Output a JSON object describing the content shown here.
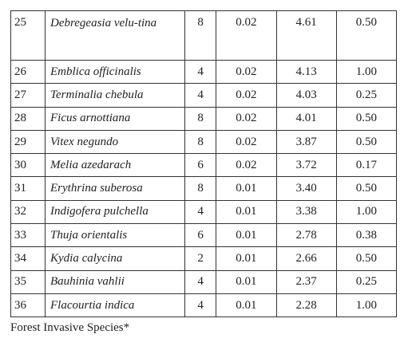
{
  "table": {
    "rows": [
      [
        "25",
        "Debregeasia velu-tina",
        "8",
        "0.02",
        "4.61",
        "0.50"
      ],
      [
        "26",
        "Emblica officinalis",
        "4",
        "0.02",
        "4.13",
        "1.00"
      ],
      [
        "27",
        "Terminalia chebula",
        "4",
        "0.02",
        "4.03",
        "0.25"
      ],
      [
        "28",
        "Ficus arnottiana",
        "8",
        "0.02",
        "4.01",
        "0.50"
      ],
      [
        "29",
        "Vitex negundo",
        "8",
        "0.02",
        "3.87",
        "0.50"
      ],
      [
        "30",
        "Melia azedarach",
        "6",
        "0.02",
        "3.72",
        "0.17"
      ],
      [
        "31",
        "Erythrina suberosa",
        "8",
        "0.01",
        "3.40",
        "0.50"
      ],
      [
        "32",
        "Indigofera pulchella",
        "4",
        "0.01",
        "3.38",
        "1.00"
      ],
      [
        "33",
        "Thuja orientalis",
        "6",
        "0.01",
        "2.78",
        "0.38"
      ],
      [
        "34",
        "Kydia calycina",
        "2",
        "0.01",
        "2.66",
        "0.50"
      ],
      [
        "35",
        "Bauhinia vahlii",
        "4",
        "0.01",
        "2.37",
        "0.25"
      ],
      [
        "36",
        "Flacourtia indica",
        "4",
        "0.01",
        "2.28",
        "1.00"
      ]
    ]
  },
  "footer": {
    "text": "Forest Invasive Species*"
  }
}
